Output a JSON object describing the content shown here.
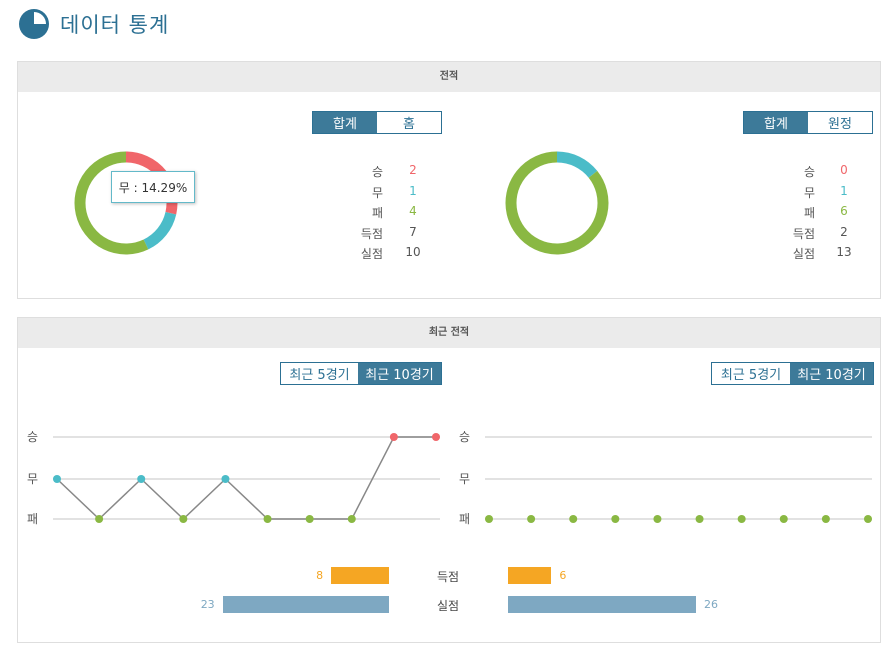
{
  "header": {
    "title": "데이터 통계",
    "icon": "pie-chart-icon"
  },
  "colors": {
    "win": "#f0666a",
    "draw": "#4bbcc8",
    "loss": "#8ab843",
    "gf": "#f5a623",
    "ga": "#7ea8c2",
    "accent": "#2c7093"
  },
  "record": {
    "title": "전적",
    "left": {
      "toggle": [
        "합계",
        "홈"
      ],
      "active": 0,
      "rows": [
        {
          "label": "승",
          "value": "2"
        },
        {
          "label": "무",
          "value": "1"
        },
        {
          "label": "패",
          "value": "4"
        },
        {
          "label": "득점",
          "value": "7"
        },
        {
          "label": "실점",
          "value": "10"
        }
      ],
      "tooltip": "무 : 14.29%"
    },
    "right": {
      "toggle": [
        "합계",
        "원정"
      ],
      "active": 0,
      "rows": [
        {
          "label": "승",
          "value": "0"
        },
        {
          "label": "무",
          "value": "1"
        },
        {
          "label": "패",
          "value": "6"
        },
        {
          "label": "득점",
          "value": "2"
        },
        {
          "label": "실점",
          "value": "13"
        }
      ]
    }
  },
  "recent": {
    "title": "최근 전적",
    "left": {
      "toggle": [
        "최근 5경기",
        "최근 10경기"
      ],
      "active": 1
    },
    "right": {
      "toggle": [
        "최근 5경기",
        "최근 10경기"
      ],
      "active": 1
    },
    "goals_for_label": "득점",
    "goals_against_label": "실점"
  },
  "chart_data": [
    {
      "type": "pie",
      "name": "left-record",
      "categories": [
        "승",
        "무",
        "패"
      ],
      "values": [
        2,
        1,
        4
      ]
    },
    {
      "type": "pie",
      "name": "right-record",
      "categories": [
        "승",
        "무",
        "패"
      ],
      "values": [
        0,
        1,
        6
      ]
    },
    {
      "type": "line",
      "name": "left-recent",
      "y_categories": [
        "승",
        "무",
        "패"
      ],
      "values": [
        "무",
        "패",
        "무",
        "패",
        "무",
        "패",
        "패",
        "패",
        "승",
        "승"
      ]
    },
    {
      "type": "line",
      "name": "right-recent",
      "y_categories": [
        "승",
        "무",
        "패"
      ],
      "values": [
        "패",
        "패",
        "패",
        "패",
        "패",
        "패",
        "패",
        "패",
        "패",
        "패"
      ]
    },
    {
      "type": "bar",
      "name": "goals",
      "categories": [
        "득점",
        "실점"
      ],
      "left": [
        8,
        23
      ],
      "right": [
        6,
        26
      ]
    }
  ]
}
